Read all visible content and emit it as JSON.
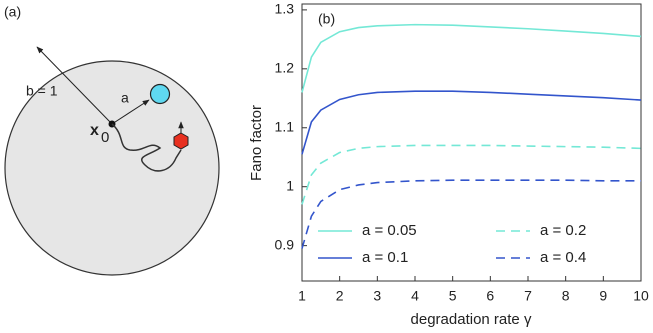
{
  "diagram": {
    "panel_label": "(a)",
    "radius_label": "b = 1",
    "target_label": "a",
    "start_label": {
      "base": "x",
      "sub": "0"
    }
  },
  "chart_data": {
    "type": "line",
    "panel_label": "(b)",
    "x_label": "degradation rate γ",
    "y_label": "Fano factor",
    "x": [
      1,
      1.25,
      1.5,
      2,
      2.5,
      3,
      4,
      5,
      6,
      7,
      8,
      9,
      10
    ],
    "series": [
      {
        "name": "a = 0.05",
        "color": "#74e8d6",
        "dash": false,
        "values": [
          1.16,
          1.22,
          1.245,
          1.263,
          1.27,
          1.273,
          1.275,
          1.274,
          1.271,
          1.268,
          1.264,
          1.26,
          1.255
        ]
      },
      {
        "name": "a = 0.1",
        "color": "#3355cc",
        "dash": false,
        "values": [
          1.055,
          1.11,
          1.13,
          1.148,
          1.156,
          1.16,
          1.162,
          1.162,
          1.16,
          1.157,
          1.154,
          1.151,
          1.147
        ]
      },
      {
        "name": "a = 0.2",
        "color": "#74e8d6",
        "dash": true,
        "values": [
          0.97,
          1.02,
          1.04,
          1.058,
          1.065,
          1.068,
          1.07,
          1.07,
          1.07,
          1.069,
          1.068,
          1.067,
          1.065
        ]
      },
      {
        "name": "a = 0.4",
        "color": "#3355cc",
        "dash": true,
        "values": [
          0.895,
          0.95,
          0.975,
          0.995,
          1.003,
          1.007,
          1.01,
          1.011,
          1.011,
          1.011,
          1.011,
          1.01,
          1.01
        ]
      }
    ],
    "xlim": [
      1,
      10
    ],
    "xticks": [
      1,
      2,
      3,
      4,
      5,
      6,
      7,
      8,
      9,
      10
    ],
    "ylim": [
      0.84,
      1.31
    ],
    "yticks": [
      0.9,
      1,
      1.1,
      1.2,
      1.3
    ],
    "grid": false
  }
}
